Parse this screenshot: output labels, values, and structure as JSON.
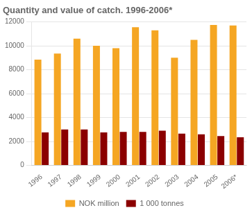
{
  "chart_data": {
    "type": "bar",
    "title": "Quantity and value of catch. 1996-2006*",
    "categories": [
      "1996",
      "1997",
      "1998",
      "1999",
      "2000",
      "2001",
      "2002",
      "2003",
      "2004",
      "2005",
      "2006*"
    ],
    "series": [
      {
        "name": "NOK million",
        "color": "#F5A623",
        "values": [
          8850,
          9350,
          10600,
          10000,
          9800,
          11550,
          11300,
          9000,
          10500,
          11750,
          11700
        ]
      },
      {
        "name": "1 000 tonnes",
        "color": "#8B0000",
        "values": [
          2750,
          3000,
          3000,
          2750,
          2800,
          2800,
          2900,
          2650,
          2600,
          2450,
          2350
        ]
      }
    ],
    "ylim": [
      0,
      12000
    ],
    "yticks": [
      0,
      2000,
      4000,
      6000,
      8000,
      10000,
      12000
    ],
    "grid": true,
    "legend": "bottom"
  }
}
